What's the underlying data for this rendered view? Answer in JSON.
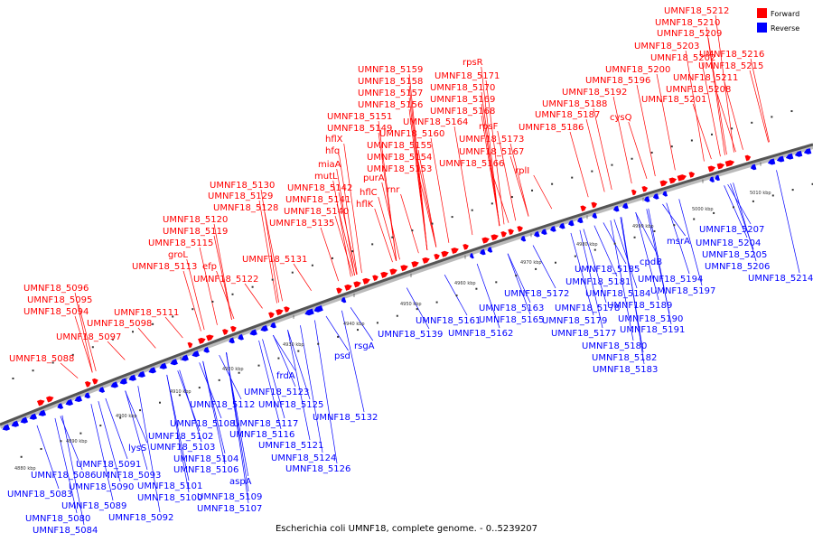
{
  "caption": "Escherichia coli UMNF18, complete genome. - 0..5239207",
  "legend": {
    "forward": {
      "label": "Forward",
      "color": "#ff0000"
    },
    "reverse": {
      "label": "Reverse",
      "color": "#0000ff"
    }
  },
  "axis_ticks": [
    "4880 kbp",
    "4890 kbp",
    "4900 kbp",
    "4910 kbp",
    "4920 kbp",
    "4930 kbp",
    "4940 kbp",
    "4950 kbp",
    "4960 kbp",
    "4970 kbp",
    "4980 kbp",
    "4990 kbp",
    "5000 kbp",
    "5010 kbp"
  ],
  "forward_labels": [
    "UMNF18_5088",
    "UMNF18_5097",
    "UMNF18_5098",
    "UMNF18_5094",
    "UMNF18_5095",
    "UMNF18_5096",
    "UMNF18_5111",
    "UMNF18_5113",
    "groL",
    "UMNF18_5115",
    "UMNF18_5119",
    "UMNF18_5120",
    "efp",
    "UMNF18_5122",
    "UMNF18_5128",
    "UMNF18_5129",
    "UMNF18_5130",
    "UMNF18_5131",
    "UMNF18_5135",
    "UMNF18_5140",
    "UMNF18_5141",
    "UMNF18_5142",
    "mutL",
    "miaA",
    "hfq",
    "hflX",
    "hflK",
    "hflC",
    "UMNF18_5149",
    "UMNF18_5151",
    "purA",
    "rnr",
    "UMNF18_5153",
    "UMNF18_5154",
    "UMNF18_5155",
    "UMNF18_5156",
    "UMNF18_5157",
    "UMNF18_5158",
    "UMNF18_5159",
    "UMNF18_5160",
    "UMNF18_5164",
    "UMNF18_5166",
    "UMNF18_5167",
    "rpsF",
    "UMNF18_5168",
    "UMNF18_5169",
    "UMNF18_5170",
    "UMNF18_5171",
    "rpsR",
    "UMNF18_5173",
    "rplI",
    "UMNF18_5186",
    "UMNF18_5187",
    "UMNF18_5188",
    "cysQ",
    "UMNF18_5192",
    "UMNF18_5196",
    "UMNF18_5200",
    "UMNF18_5201",
    "UMNF18_5202",
    "UMNF18_5203",
    "UMNF18_5208",
    "UMNF18_5209",
    "UMNF18_5210",
    "UMNF18_5211",
    "UMNF18_5212",
    "UMNF18_5215",
    "UMNF18_5216"
  ],
  "reverse_labels": [
    "UMNF18_5083",
    "UMNF18_5080",
    "UMNF18_5084",
    "UMNF18_5086",
    "UMNF18_5089",
    "UMNF18_5090",
    "UMNF18_5091",
    "lysS",
    "UMNF18_5093",
    "UMNF18_5092",
    "UMNF18_5100",
    "UMNF18_5101",
    "UMNF18_5102",
    "UMNF18_5103",
    "UMNF18_5104",
    "UMNF18_5106",
    "UMNF18_5107",
    "UMNF18_5108",
    "UMNF18_5109",
    "aspA",
    "UMNF18_5112",
    "UMNF18_5116",
    "UMNF18_5117",
    "UMNF18_5121",
    "UMNF18_5123",
    "frdA",
    "UMNF18_5124",
    "UMNF18_5125",
    "UMNF18_5126",
    "UMNF18_5132",
    "psd",
    "rsgA",
    "UMNF18_5139",
    "UMNF18_5161",
    "UMNF18_5162",
    "UMNF18_5163",
    "UMNF18_5165",
    "UMNF18_5172",
    "UMNF18_5177",
    "UMNF18_5178",
    "UMNF18_5179",
    "UMNF18_5180",
    "UMNF18_5181",
    "UMNF18_5182",
    "UMNF18_5183",
    "UMNF18_5184",
    "UMNF18_5185",
    "cpdB",
    "UMNF18_5189",
    "UMNF18_5190",
    "UMNF18_5191",
    "msrA",
    "UMNF18_5194",
    "UMNF18_5197",
    "UMNF18_5204",
    "UMNF18_5205",
    "UMNF18_5206",
    "UMNF18_5207",
    "UMNF18_5214"
  ]
}
